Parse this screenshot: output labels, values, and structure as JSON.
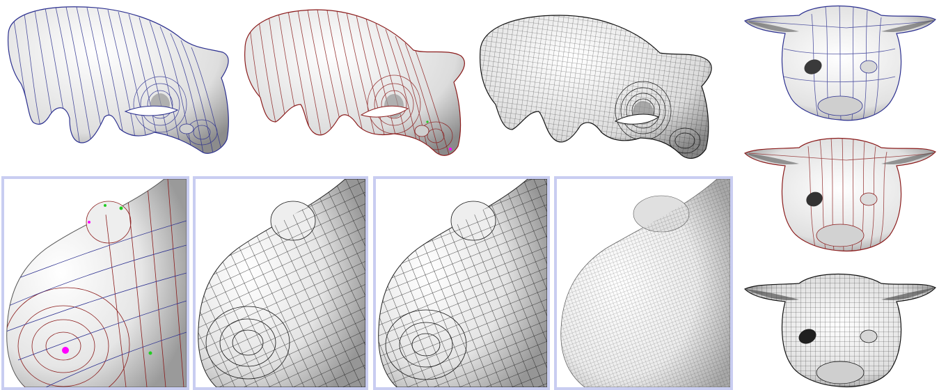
{
  "figure": {
    "top_row": [
      {
        "id": "pig-blue",
        "line_color": "#2b2f8f",
        "style": "blue iso-lines"
      },
      {
        "id": "pig-red",
        "line_color": "#8a1a1a",
        "style": "red iso-lines"
      },
      {
        "id": "pig-quad",
        "line_color": "#111111",
        "style": "quad mesh"
      }
    ],
    "bottom_row": [
      {
        "id": "snout-closeup-lines",
        "frame_color": "#c9cdf1",
        "line_colors": [
          "#8a1a1a",
          "#2b2f8f"
        ],
        "singularity_colors": [
          "#ff00ff",
          "#22cc22"
        ]
      },
      {
        "id": "snout-closeup-quad-coarse",
        "frame_color": "#c9cdf1",
        "line_color": "#111111"
      },
      {
        "id": "snout-closeup-quad-coarse-2",
        "frame_color": "#c9cdf1",
        "line_color": "#111111"
      },
      {
        "id": "snout-closeup-quad-fine",
        "frame_color": "#c9cdf1",
        "line_color": "#222222"
      }
    ],
    "right_column": [
      {
        "id": "pig-front-blue",
        "line_color": "#2b2f8f"
      },
      {
        "id": "pig-front-red",
        "line_color": "#8a1a1a"
      },
      {
        "id": "pig-front-quad",
        "line_color": "#111111"
      }
    ],
    "surface_color": "#f2f2f2",
    "shadow_color": "#6b6b6b"
  }
}
